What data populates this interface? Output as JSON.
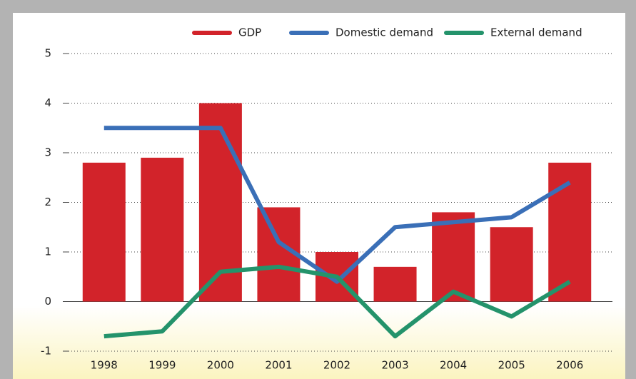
{
  "chart_data": {
    "type": "bar+line",
    "categories": [
      "1998",
      "1999",
      "2000",
      "2001",
      "2002",
      "2003",
      "2004",
      "2005",
      "2006"
    ],
    "series": [
      {
        "name": "GDP",
        "type": "bar",
        "color": "#d2232a",
        "values": [
          2.8,
          2.9,
          4.0,
          1.9,
          1.0,
          0.7,
          1.8,
          1.5,
          2.8
        ]
      },
      {
        "name": "Domestic demand",
        "type": "line",
        "color": "#3a6fb7",
        "values": [
          3.5,
          3.5,
          3.5,
          1.2,
          0.4,
          1.5,
          1.6,
          1.7,
          2.4
        ]
      },
      {
        "name": "External demand",
        "type": "line",
        "color": "#24936b",
        "values": [
          -0.7,
          -0.6,
          0.6,
          0.7,
          0.5,
          -0.7,
          0.2,
          -0.3,
          0.4
        ]
      }
    ],
    "ylim": [
      -1,
      5
    ],
    "yticks": [
      -1,
      0,
      1,
      2,
      3,
      4,
      5
    ],
    "grid": true,
    "legend": "top-right"
  }
}
